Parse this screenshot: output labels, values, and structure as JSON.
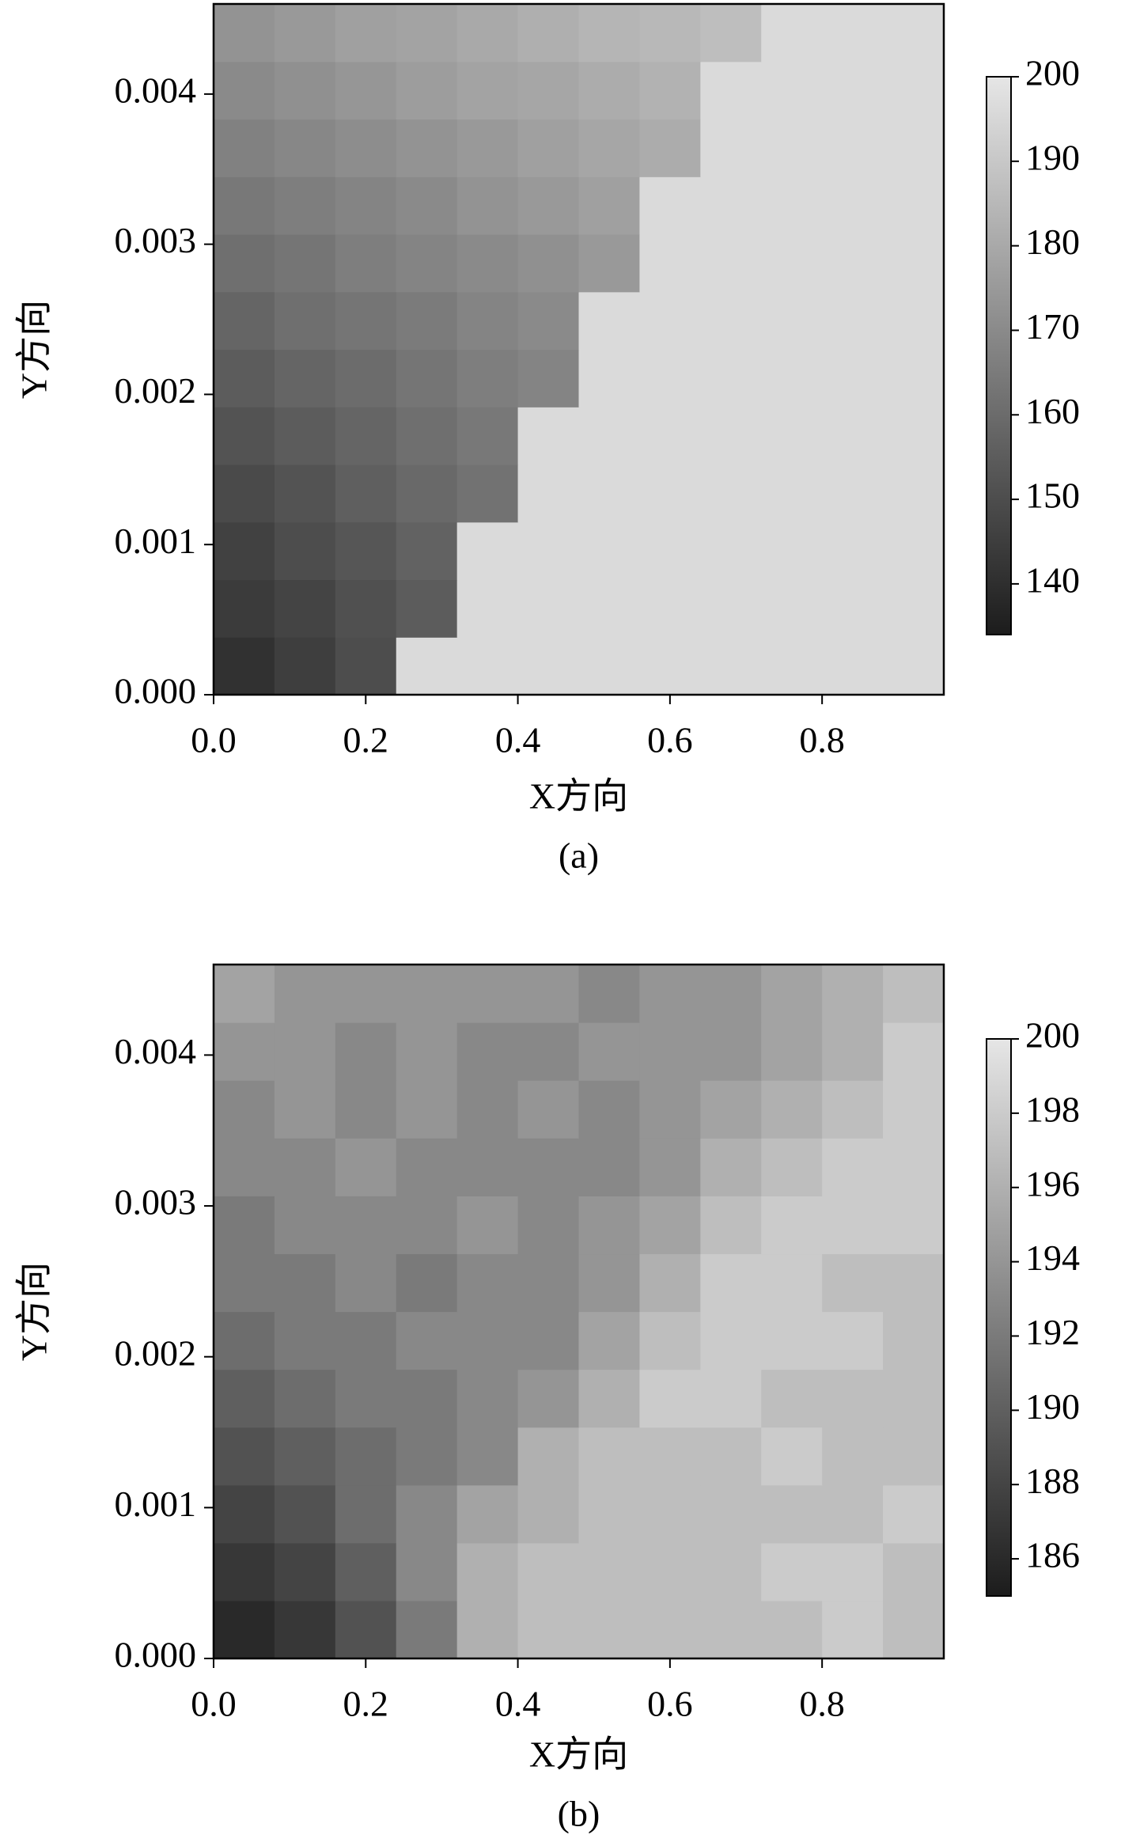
{
  "chart_data": [
    {
      "type": "heatmap",
      "xlabel": "X方向",
      "ylabel": "Y方向",
      "caption": "(a)",
      "xlim": [
        0,
        0.96
      ],
      "ylim": [
        0,
        0.0046
      ],
      "xticks": [
        {
          "value": 0,
          "label": "0.0"
        },
        0.2,
        0.4,
        0.6,
        0.8
      ],
      "yticks": [
        {
          "value": 0,
          "label": "0.000"
        },
        {
          "value": 0.001,
          "label": "0.001"
        },
        {
          "value": 0.002,
          "label": "0.002"
        },
        {
          "value": 0.003,
          "label": "0.003"
        },
        {
          "value": 0.004,
          "label": "0.004"
        }
      ],
      "colormap": [
        "#1c1c1c",
        "#e6e6e6"
      ],
      "clim": [
        134,
        200
      ],
      "cticks": [
        140,
        150,
        160,
        170,
        180,
        190,
        200
      ],
      "values": [
        [
          141,
          145,
          150,
          196,
          196,
          196,
          196,
          196,
          196,
          196,
          196,
          196
        ],
        [
          144,
          147,
          151,
          155,
          196,
          196,
          196,
          196,
          196,
          196,
          196,
          196
        ],
        [
          146,
          150,
          153,
          157,
          196,
          196,
          196,
          196,
          196,
          196,
          196,
          196
        ],
        [
          149,
          152,
          156,
          159,
          162,
          196,
          196,
          196,
          196,
          196,
          196,
          196
        ],
        [
          152,
          155,
          158,
          161,
          164,
          196,
          196,
          196,
          196,
          196,
          196,
          196
        ],
        [
          155,
          158,
          160,
          163,
          166,
          168,
          196,
          196,
          196,
          196,
          196,
          196
        ],
        [
          158,
          161,
          163,
          165,
          168,
          170,
          196,
          196,
          196,
          196,
          196,
          196
        ],
        [
          161,
          163,
          166,
          168,
          170,
          172,
          175,
          196,
          196,
          196,
          196,
          196
        ],
        [
          164,
          166,
          168,
          170,
          173,
          175,
          177,
          196,
          196,
          196,
          196,
          196
        ],
        [
          167,
          169,
          171,
          173,
          175,
          177,
          179,
          181,
          196,
          196,
          196,
          196
        ],
        [
          170,
          172,
          174,
          176,
          178,
          179,
          181,
          183,
          196,
          196,
          196,
          196
        ],
        [
          173,
          175,
          177,
          178,
          180,
          182,
          184,
          185,
          187,
          196,
          196,
          196
        ]
      ]
    },
    {
      "type": "heatmap",
      "xlabel": "X方向",
      "ylabel": "Y方向",
      "caption": "(b)",
      "xlim": [
        0,
        0.96
      ],
      "ylim": [
        0,
        0.0046
      ],
      "xticks": [
        {
          "value": 0,
          "label": "0.0"
        },
        0.2,
        0.4,
        0.6,
        0.8
      ],
      "yticks": [
        {
          "value": 0,
          "label": "0.000"
        },
        {
          "value": 0.001,
          "label": "0.001"
        },
        {
          "value": 0.002,
          "label": "0.002"
        },
        {
          "value": 0.003,
          "label": "0.003"
        },
        {
          "value": 0.004,
          "label": "0.004"
        }
      ],
      "colormap": [
        "#1c1c1c",
        "#e6e6e6"
      ],
      "clim": [
        185,
        200
      ],
      "cticks": [
        186,
        188,
        190,
        192,
        194,
        196,
        198,
        200
      ],
      "values": [
        [
          186,
          187,
          189,
          192,
          196,
          197,
          197,
          197,
          197,
          197,
          198,
          197
        ],
        [
          187,
          188,
          190,
          193,
          196,
          197,
          197,
          197,
          197,
          198,
          198,
          197
        ],
        [
          188,
          189,
          191,
          193,
          195,
          196,
          197,
          197,
          197,
          197,
          197,
          198
        ],
        [
          189,
          190,
          191,
          192,
          193,
          196,
          197,
          197,
          197,
          198,
          197,
          197
        ],
        [
          190,
          191,
          192,
          192,
          193,
          194,
          196,
          198,
          198,
          197,
          197,
          197
        ],
        [
          191,
          192,
          192,
          193,
          193,
          193,
          195,
          197,
          198,
          198,
          198,
          197
        ],
        [
          192,
          192,
          193,
          192,
          193,
          193,
          194,
          196,
          198,
          198,
          197,
          197
        ],
        [
          192,
          193,
          193,
          193,
          194,
          193,
          194,
          195,
          197,
          198,
          198,
          198
        ],
        [
          193,
          193,
          194,
          193,
          193,
          193,
          193,
          194,
          196,
          197,
          198,
          198
        ],
        [
          193,
          194,
          193,
          194,
          193,
          194,
          193,
          194,
          195,
          196,
          197,
          198
        ],
        [
          194,
          194,
          193,
          194,
          193,
          193,
          194,
          194,
          194,
          195,
          196,
          198
        ],
        [
          195,
          194,
          194,
          194,
          194,
          194,
          193,
          194,
          194,
          195,
          196,
          197
        ]
      ]
    }
  ]
}
